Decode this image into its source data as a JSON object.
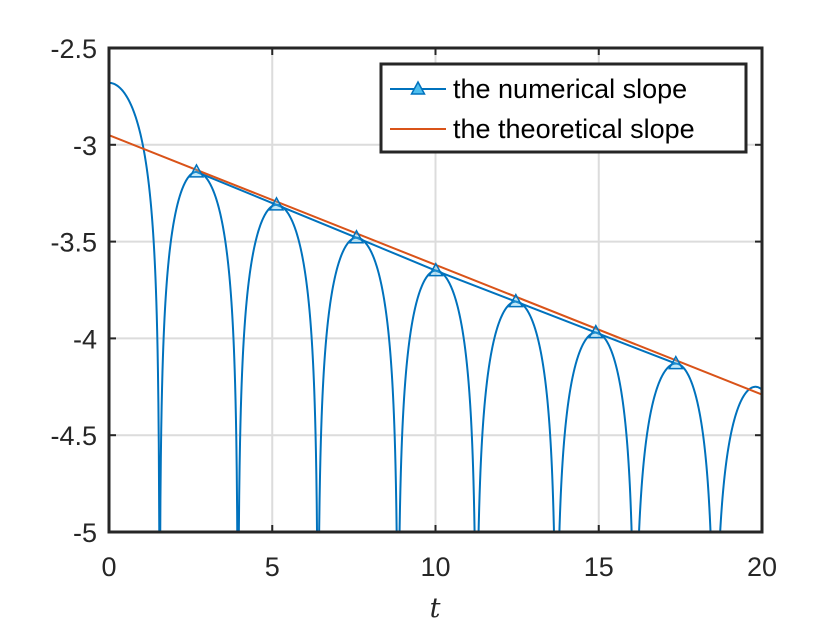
{
  "chart_data": {
    "type": "line",
    "title": "",
    "xlabel": "t",
    "ylabel": "",
    "xlim": [
      0,
      20
    ],
    "ylim": [
      -5,
      -2.5
    ],
    "xticks": [
      0,
      5,
      10,
      15,
      20
    ],
    "xtick_labels": [
      "0",
      "5",
      "10",
      "15",
      "20"
    ],
    "yticks": [
      -5,
      -4.5,
      -4,
      -3.5,
      -3,
      -2.5
    ],
    "ytick_labels": [
      "-5",
      "-4.5",
      "-4",
      "-3.5",
      "-3",
      "-2.5"
    ],
    "grid": true,
    "legend_position": "top-right",
    "series": [
      {
        "name": "the numerical slope",
        "color": "#0072BD",
        "marker": "triangle",
        "peak_t": [
          0,
          2.68,
          5.13,
          7.58,
          10.01,
          12.46,
          14.91,
          17.36,
          19.8
        ],
        "peak_value": [
          -2.68,
          -3.14,
          -3.31,
          -3.48,
          -3.65,
          -3.81,
          -3.97,
          -4.13,
          -4.25
        ],
        "marker_t": [
          2.68,
          5.13,
          7.58,
          10.01,
          12.46,
          14.91,
          17.36
        ],
        "marker_value": [
          -3.14,
          -3.31,
          -3.48,
          -3.65,
          -3.81,
          -3.97,
          -4.13
        ],
        "zero_t": [
          1.55,
          3.95,
          6.4,
          8.85,
          11.25,
          13.7,
          16.1,
          18.55
        ]
      },
      {
        "name": "the theoretical slope",
        "color": "#D95319",
        "x": [
          0,
          20
        ],
        "y": [
          -2.95,
          -4.29
        ]
      }
    ]
  }
}
